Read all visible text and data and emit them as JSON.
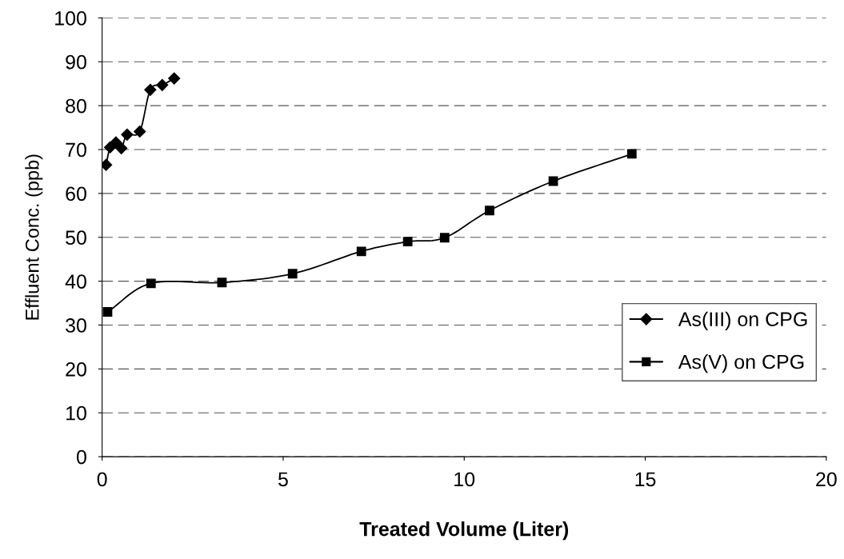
{
  "chart_data": {
    "type": "line",
    "xlabel": "Treated Volume (Liter)",
    "ylabel": "Effluent Conc. (ppb)",
    "xlim": [
      0,
      20
    ],
    "xticks": [
      0,
      5,
      10,
      15,
      20
    ],
    "ylim": [
      0,
      100
    ],
    "yticks": [
      0,
      10,
      20,
      30,
      40,
      50,
      60,
      70,
      80,
      90,
      100
    ],
    "grid": "y",
    "legend": "lower right",
    "line_style": "solid",
    "series": [
      {
        "name": "As(III) on CPG",
        "color": "#000000",
        "marker": "diamond",
        "x": [
          0.11,
          0.22,
          0.38,
          0.53,
          0.69,
          1.04,
          1.33,
          1.66,
          1.99
        ],
        "values": [
          66.5,
          70.5,
          71.6,
          70.3,
          73.4,
          74.1,
          83.6,
          84.7,
          86.2
        ]
      },
      {
        "name": "As(V) on CPG",
        "color": "#000000",
        "marker": "square",
        "x": [
          0.15,
          1.35,
          3.31,
          5.26,
          7.16,
          8.44,
          9.46,
          10.7,
          12.46,
          14.63
        ],
        "values": [
          33.0,
          39.5,
          39.7,
          41.7,
          46.8,
          49.0,
          49.9,
          56.1,
          62.8,
          69.0
        ]
      }
    ]
  }
}
